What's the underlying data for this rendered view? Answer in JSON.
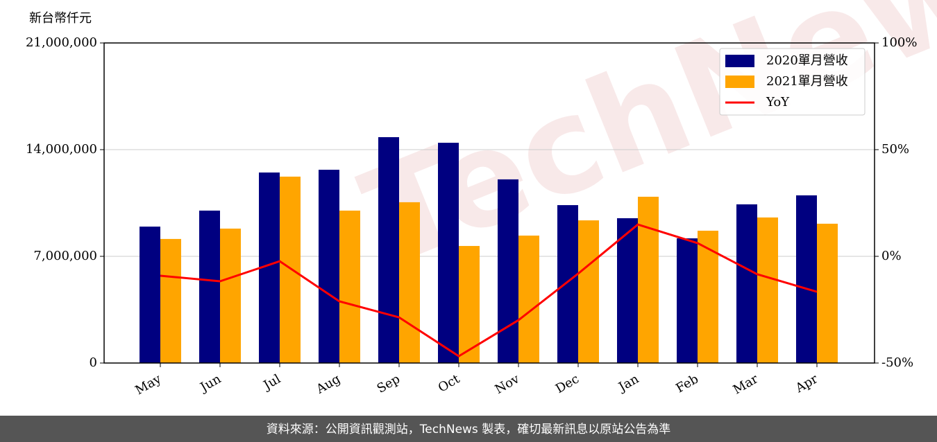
{
  "chart_data": {
    "type": "bar-line",
    "y_axis_label": "新台幣仟元",
    "watermark": "TechNews",
    "categories": [
      "May",
      "Jun",
      "Jul",
      "Aug",
      "Sep",
      "Oct",
      "Nov",
      "Dec",
      "Jan",
      "Feb",
      "Mar",
      "Apr"
    ],
    "series": [
      {
        "name": "2020單月營收",
        "color": "#000080",
        "values": [
          8950000,
          10000000,
          12500000,
          12680000,
          14820000,
          14450000,
          12050000,
          10360000,
          9500000,
          8180000,
          10410000,
          11000000
        ]
      },
      {
        "name": "2021單月營收",
        "color": "#ffa500",
        "values": [
          8140000,
          8820000,
          12230000,
          10000000,
          10550000,
          7680000,
          8360000,
          9360000,
          10910000,
          8680000,
          9550000,
          9140000
        ]
      },
      {
        "name": "YoY",
        "color": "#ff0000",
        "axis": "y2",
        "values": [
          -9.1,
          -11.7,
          -2.3,
          -21.1,
          -28.6,
          -46.8,
          -29.9,
          -8.1,
          14.9,
          6.2,
          -8.4,
          -16.6
        ]
      }
    ],
    "ylim": [
      0,
      21000000
    ],
    "yticks": [
      {
        "value": 0,
        "label": "0"
      },
      {
        "value": 7000000,
        "label": "7,000,000"
      },
      {
        "value": 14000000,
        "label": "14,000,000"
      },
      {
        "value": 21000000,
        "label": "21,000,000"
      }
    ],
    "y2lim": [
      -50,
      100
    ],
    "y2ticks": [
      {
        "value": -50,
        "label": "-50%"
      },
      {
        "value": 0,
        "label": "0%"
      },
      {
        "value": 50,
        "label": "50%"
      },
      {
        "value": 100,
        "label": "100%"
      }
    ],
    "grid": true,
    "legend": "upper-right",
    "footer": "資料來源：公開資訊觀測站，TechNews 製表，確切最新訊息以原站公告為準"
  }
}
